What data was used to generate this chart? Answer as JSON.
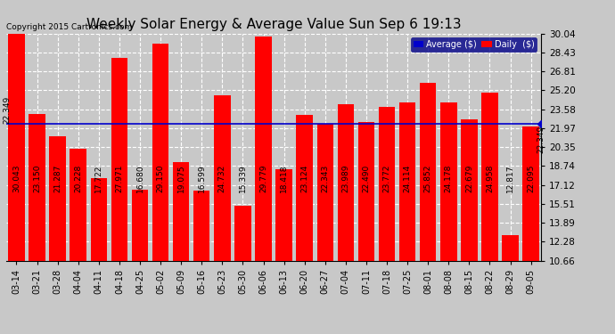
{
  "title": "Weekly Solar Energy & Average Value Sun Sep 6 19:13",
  "copyright": "Copyright 2015 Cartronics.com",
  "categories": [
    "03-14",
    "03-21",
    "03-28",
    "04-04",
    "04-11",
    "04-18",
    "04-25",
    "05-02",
    "05-09",
    "05-16",
    "05-23",
    "05-30",
    "06-06",
    "06-13",
    "06-20",
    "06-27",
    "07-04",
    "07-11",
    "07-18",
    "07-25",
    "08-01",
    "08-08",
    "08-15",
    "08-22",
    "08-29",
    "09-05"
  ],
  "values": [
    30.043,
    23.15,
    21.287,
    20.228,
    17.722,
    27.971,
    16.68,
    29.15,
    19.075,
    16.599,
    24.732,
    15.339,
    29.779,
    18.418,
    23.124,
    22.343,
    23.989,
    22.49,
    23.772,
    24.114,
    25.852,
    24.178,
    22.679,
    24.958,
    12.817,
    22.095
  ],
  "bar_color": "#ff0000",
  "average_value": 22.349,
  "average_line_color": "#0000cc",
  "yticks": [
    10.66,
    12.28,
    13.89,
    15.51,
    17.12,
    18.74,
    20.35,
    21.97,
    23.58,
    25.2,
    26.81,
    28.43,
    30.04
  ],
  "plot_bg_color": "#c8c8c8",
  "title_fontsize": 11,
  "bar_label_fontsize": 6.5,
  "ytick_fontsize": 7.5,
  "xtick_fontsize": 7,
  "legend_avg_color": "#0000cc",
  "legend_daily_color": "#ff0000",
  "legend_avg_label": "Average ($)",
  "legend_daily_label": "Daily  ($)",
  "avg_label": "22.349"
}
